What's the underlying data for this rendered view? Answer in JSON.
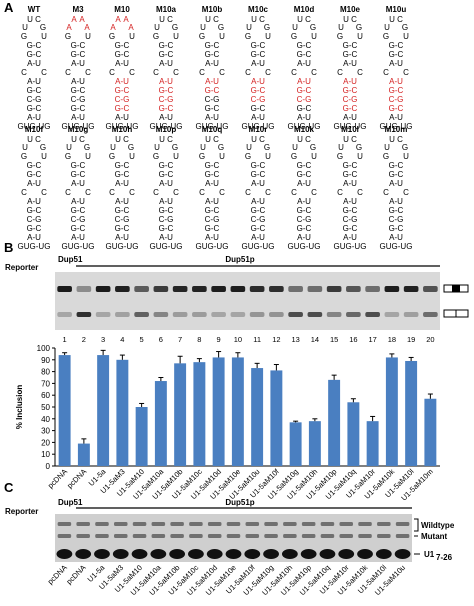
{
  "panels": {
    "a": "A",
    "b": "B",
    "c": "C"
  },
  "structures": {
    "row1": [
      {
        "name": "WT",
        "loop": [
          "U C",
          "U",
          "G"
        ],
        "red_pairs": []
      },
      {
        "name": "M3",
        "loop": [
          "A A",
          "A",
          "A"
        ],
        "red_pairs": []
      },
      {
        "name": "M10",
        "loop": [
          "A A",
          "A",
          "A"
        ],
        "red_pairs": [
          0,
          1,
          2,
          3
        ]
      },
      {
        "name": "M10a",
        "loop": [
          "U C",
          "U",
          "G"
        ],
        "red_pairs": [
          0,
          1,
          2,
          3
        ]
      },
      {
        "name": "M10b",
        "loop": [
          "U C",
          "U",
          "G"
        ],
        "red_pairs": [
          0,
          1
        ]
      },
      {
        "name": "M10c",
        "loop": [
          "U C",
          "U",
          "G"
        ],
        "red_pairs": [
          0,
          1,
          2
        ]
      },
      {
        "name": "M10d",
        "loop": [
          "U C",
          "U",
          "G"
        ],
        "red_pairs": [
          0,
          1,
          2
        ]
      },
      {
        "name": "M10e",
        "loop": [
          "U C",
          "U",
          "G"
        ],
        "red_pairs": [
          0,
          1,
          2,
          3
        ]
      },
      {
        "name": "M10u",
        "loop": [
          "U C",
          "U",
          "G"
        ],
        "red_pairs": [
          0,
          1,
          2,
          3
        ]
      }
    ],
    "row2": [
      {
        "name": "M10f",
        "loop": [
          "U C",
          "U",
          "G"
        ],
        "red_pairs": []
      },
      {
        "name": "M10g",
        "loop": [
          "U C",
          "U",
          "G"
        ],
        "red_pairs": []
      },
      {
        "name": "M10h",
        "loop": [
          "U C",
          "U",
          "G"
        ],
        "red_pairs": []
      },
      {
        "name": "M10p",
        "loop": [
          "U C",
          "U",
          "G"
        ],
        "red_pairs": []
      },
      {
        "name": "M10q",
        "loop": [
          "U C",
          "U",
          "G"
        ],
        "red_pairs": []
      },
      {
        "name": "M10r",
        "loop": [
          "U C",
          "U",
          "G"
        ],
        "red_pairs": []
      },
      {
        "name": "M10k",
        "loop": [
          "U C",
          "U",
          "G"
        ],
        "red_pairs": []
      },
      {
        "name": "M10l",
        "loop": [
          "U C",
          "U",
          "G"
        ],
        "red_pairs": []
      },
      {
        "name": "M10m",
        "loop": [
          "U C",
          "U",
          "G"
        ],
        "red_pairs": []
      }
    ],
    "base_pairs": [
      "A-U",
      "G-C",
      "C-G",
      "G-C",
      "A-U"
    ],
    "closing": "GUG-UG"
  },
  "panel_b": {
    "reporter_label": "Reporter",
    "dup51": "Dup51",
    "dup51p": "Dup51p",
    "lane_numbers": [
      "1",
      "2",
      "3",
      "4",
      "5",
      "6",
      "7",
      "8",
      "9",
      "10",
      "11",
      "12",
      "13",
      "14",
      "15",
      "16",
      "17",
      "18",
      "19",
      "20"
    ],
    "chart_data": {
      "type": "bar",
      "ylabel": "% Inclusion",
      "ylim": [
        0,
        100
      ],
      "yticks": [
        "0",
        "10",
        "20",
        "30",
        "40",
        "50",
        "60",
        "70",
        "80",
        "90",
        "100"
      ],
      "categories": [
        "pcDNA",
        "pcDNA",
        "U1-5a",
        "U1-5aM3",
        "U1-5aM10",
        "U1-5aM10a",
        "U1-5aM10b",
        "U1-5aM10c",
        "U1-5aM10d",
        "U1-5aM10e",
        "U1-5aM10u",
        "U1-5aM10f",
        "U1-5aM10g",
        "U1-5aM10h",
        "U1-5aM10p",
        "U1-5aM10q",
        "U1-5aM10r",
        "U1-5aM10k",
        "U1-5aM10l",
        "U1-5aM10m"
      ],
      "values": [
        94,
        19,
        94,
        90,
        50,
        72,
        87,
        88,
        92,
        92,
        83,
        81,
        37,
        38,
        73,
        54,
        38,
        92,
        89,
        57
      ],
      "errors": [
        2,
        4,
        4,
        4,
        3,
        3,
        6,
        3,
        5,
        4,
        4,
        5,
        1,
        2,
        4,
        3,
        4,
        3,
        3,
        4
      ],
      "bar_color": "#4a7fc1"
    }
  },
  "panel_c": {
    "reporter_label": "Reporter",
    "dup51": "Dup51",
    "dup51p": "Dup51p",
    "lane_labels": [
      "pcDNA",
      "pcDNA",
      "U1-5a",
      "U1-5aM3",
      "U1-5aM10",
      "U1-5aM10a",
      "U1-5aM10b",
      "U1-5aM10c",
      "U1-5aM10d",
      "U1-5aM10e",
      "U1-5aM10f",
      "U1-5aM10g",
      "U1-5aM10h",
      "U1-5aM10p",
      "U1-5aM10q",
      "U1-5aM10r",
      "U1-5aM10k",
      "U1-5aM10l",
      "U1-5aM10u"
    ],
    "wildtype": "Wildtype",
    "mutant": "Mutant",
    "u1": "U1",
    "u1_sub": "7-26"
  }
}
